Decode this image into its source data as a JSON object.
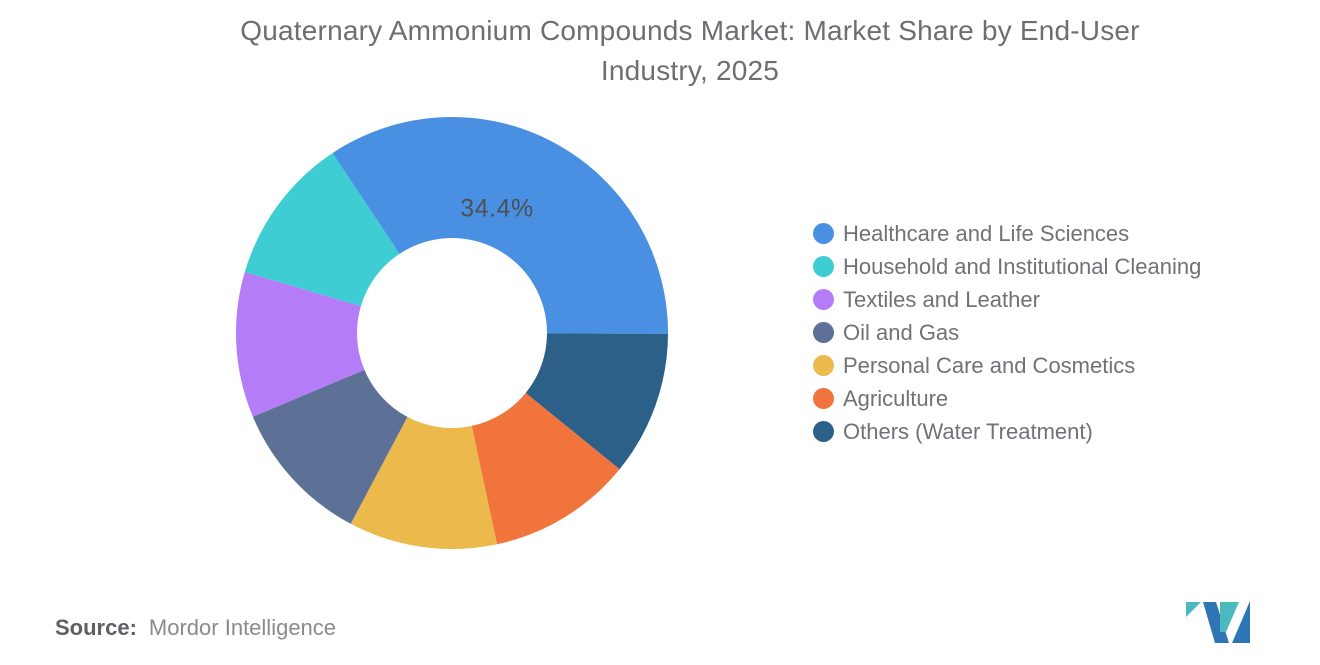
{
  "title": {
    "line1": "Quaternary Ammonium Compounds Market: Market Share by End-User",
    "line2": "Industry, 2025"
  },
  "chart_data": {
    "type": "pie",
    "donut": true,
    "title": "Quaternary Ammonium Compounds Market: Market Share by End-User Industry, 2025",
    "unit": "%",
    "series": [
      {
        "name": "Healthcare and Life Sciences",
        "value": 34.4,
        "color": "#4A90E2",
        "label": "34.4%"
      },
      {
        "name": "Household and Institutional Cleaning",
        "value": 11.1,
        "color": "#3ECDD3"
      },
      {
        "name": "Textiles and Leather",
        "value": 10.9,
        "color": "#B57CF8"
      },
      {
        "name": "Oil and Gas",
        "value": 10.9,
        "color": "#5D7096"
      },
      {
        "name": "Personal Care and Cosmetics",
        "value": 11.1,
        "color": "#ECB94D"
      },
      {
        "name": "Agriculture",
        "value": 10.8,
        "color": "#F0743C"
      },
      {
        "name": "Others (Water Treatment)",
        "value": 10.8,
        "color": "#2C6089"
      }
    ],
    "values_note": "Only the 34.4% slice carries a data label; remaining values estimated from arc angles",
    "layout": {
      "start_angle_deg": -33.6,
      "clockwise_order": [
        0,
        6,
        5,
        4,
        3,
        2,
        1
      ],
      "inner_radius_frac": 0.44,
      "legend_position": "right",
      "grid": false
    }
  },
  "source": {
    "label": "Source:",
    "value": "Mordor Intelligence"
  },
  "logo": {
    "alt": "Mordor Intelligence logo mark",
    "teal": "#4BB9BE",
    "blue": "#2E75B6"
  }
}
